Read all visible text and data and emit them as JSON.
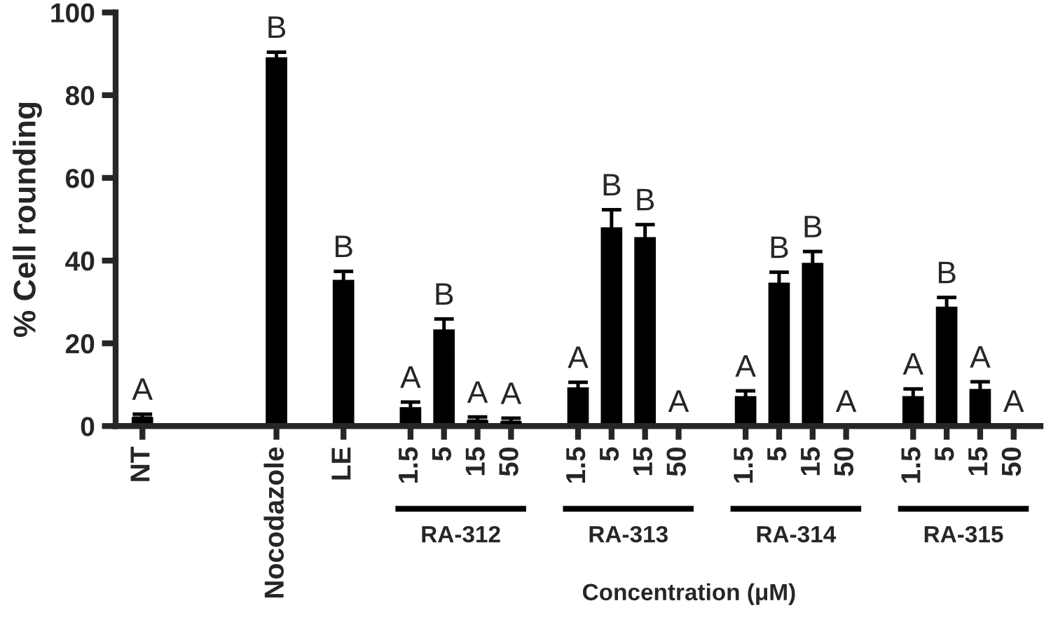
{
  "chart_data": {
    "type": "bar",
    "ylabel": "% Cell rounding",
    "xlabel": "Concentration (μM)",
    "categories": [
      "NT",
      null,
      null,
      null,
      "Nocodazole",
      null,
      "LE",
      null,
      "1.5",
      "5",
      "15",
      "50",
      null,
      "1.5",
      "5",
      "15",
      "50",
      null,
      "1.5",
      "5",
      "15",
      "50",
      null,
      "1.5",
      "5",
      "15",
      "50"
    ],
    "values": [
      2.4,
      null,
      null,
      null,
      89.4,
      null,
      35.6,
      null,
      4.8,
      23.6,
      1.7,
      1.4,
      null,
      9.6,
      48.3,
      45.9,
      null,
      null,
      7.5,
      34.9,
      39.7,
      null,
      null,
      7.5,
      29.1,
      9.2,
      null
    ],
    "errors": [
      0.5,
      null,
      null,
      null,
      1,
      null,
      1.8,
      null,
      1,
      2.3,
      0.5,
      0.5,
      null,
      1,
      4,
      2.8,
      null,
      null,
      1,
      2.3,
      2.5,
      null,
      null,
      1.5,
      2,
      1.5,
      null
    ],
    "value_labels": [
      "A",
      null,
      null,
      null,
      "B",
      null,
      "B",
      null,
      "A",
      "B",
      "A",
      "A",
      null,
      "A",
      "B",
      "B",
      "A",
      null,
      "A",
      "B",
      "B",
      "A",
      null,
      "A",
      "B",
      "A",
      "A"
    ],
    "color": "#000000",
    "annotations": [
      "RA-312",
      "RA-313",
      "RA-314",
      "RA-315"
    ],
    "ylim": [
      0,
      100
    ],
    "yticks": [
      0,
      20,
      40,
      60,
      80,
      100
    ],
    "grid": false,
    "legend": false
  }
}
